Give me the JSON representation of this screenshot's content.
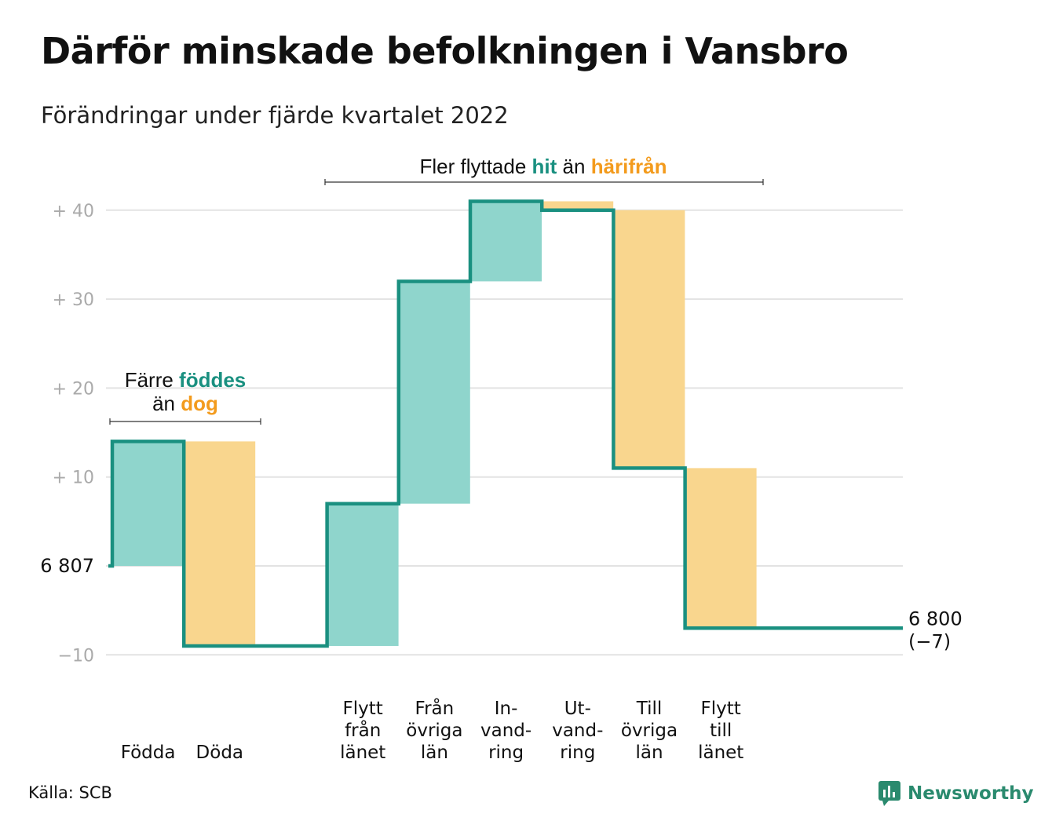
{
  "title": "Därför minskade befolkningen i Vansbro",
  "subtitle": "Förändringar under fjärde kvartalet 2022",
  "source": "Källa: SCB",
  "brand": "Newsworthy",
  "colors": {
    "increase_fill": "#8fd5cc",
    "decrease_fill": "#f9d68e",
    "step_line": "#1a9080",
    "hit_text": "#1a9080",
    "away_text": "#f39b1d",
    "grid": "#e3e3e3",
    "tick_text": "#aaaaaa",
    "brand": "#2a8a6e"
  },
  "chart_data": {
    "type": "waterfall",
    "start_label": "6 807",
    "end_label": [
      "6 800",
      "(−7)"
    ],
    "y_ticks": [
      "+ 40",
      "+ 30",
      "+ 20",
      "+ 10",
      "−10"
    ],
    "ylim": [
      -10,
      41
    ],
    "categories": [
      {
        "label": [
          "Födda"
        ],
        "delta": 14
      },
      {
        "label": [
          "Döda"
        ],
        "delta": -23
      },
      {
        "label": [
          ""
        ],
        "delta": 0
      },
      {
        "label": [
          "Flytt",
          "från",
          "länet"
        ],
        "delta": 16
      },
      {
        "label": [
          "Från",
          "övriga",
          "län"
        ],
        "delta": 25
      },
      {
        "label": [
          "In-",
          "vand-",
          "ring"
        ],
        "delta": 9
      },
      {
        "label": [
          "Ut-",
          "vand-",
          "ring"
        ],
        "delta": -1
      },
      {
        "label": [
          "Till",
          "övriga",
          "län"
        ],
        "delta": -29
      },
      {
        "label": [
          "Flytt",
          "till",
          "länet"
        ],
        "delta": -18
      }
    ],
    "annotations": [
      {
        "parts": [
          {
            "text": "Färre ",
            "style": "plain"
          },
          {
            "text": "föddes",
            "style": "hit"
          },
          {
            "text": "än ",
            "style": "plain"
          },
          {
            "text": "dog",
            "style": "away"
          }
        ]
      },
      {
        "parts": [
          {
            "text": "Fler flyttade ",
            "style": "plain"
          },
          {
            "text": "hit",
            "style": "hit"
          },
          {
            "text": " än ",
            "style": "plain"
          },
          {
            "text": "härifrån",
            "style": "away"
          }
        ]
      }
    ],
    "grid": true,
    "legend": "none"
  }
}
